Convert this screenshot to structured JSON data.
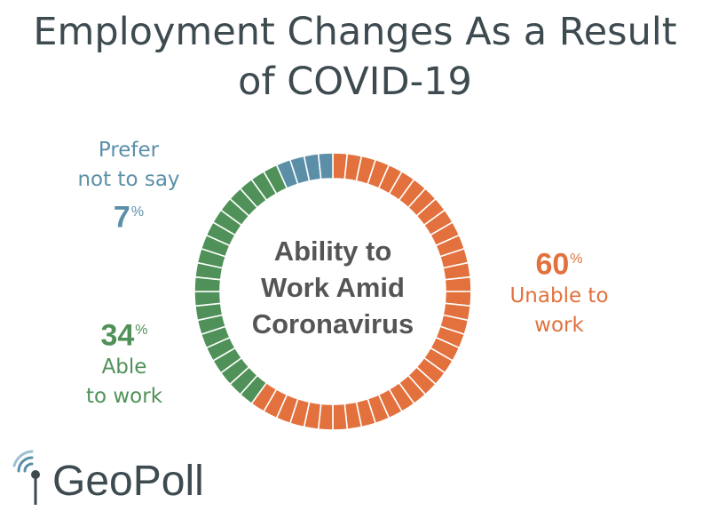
{
  "title_lines": [
    "Employment Changes As a Result",
    "of COVID-19"
  ],
  "center_label_lines": [
    "Ability to",
    "Work Amid",
    "Coronavirus"
  ],
  "chart_data": {
    "type": "pie",
    "title": "Employment Changes As a Result of COVID-19",
    "style": "segmented donut",
    "segments": 60,
    "slices": [
      {
        "name_lines": [
          "Unable to",
          "work"
        ],
        "value": 60,
        "unit": "%",
        "color": "#e2713d"
      },
      {
        "name_lines": [
          "Able",
          "to work"
        ],
        "value": 34,
        "unit": "%",
        "color": "#4f9158"
      },
      {
        "name_lines": [
          "Prefer",
          "not to say"
        ],
        "value": 7,
        "unit": "%",
        "color": "#5b8fa8"
      }
    ]
  },
  "logo": {
    "text": "GeoPoll",
    "color_dark": "#3d4a4f",
    "color_accent": "#5b8fa8"
  }
}
